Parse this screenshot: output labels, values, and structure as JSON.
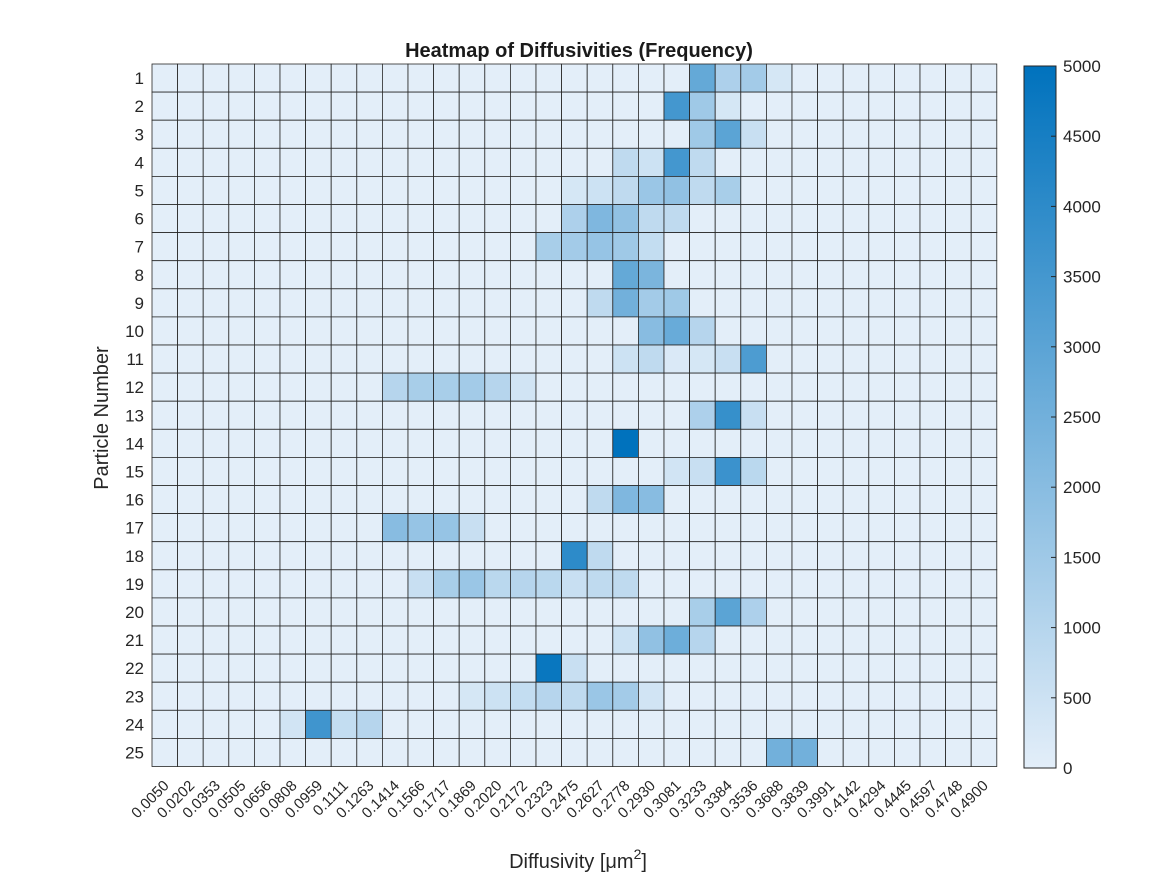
{
  "chart_data": {
    "type": "heatmap",
    "title": "Heatmap of Diffusivities (Frequency)",
    "xlabel": "Diffusivity [μm",
    "xlabel_sup": "2",
    "xlabel_end": "]",
    "ylabel": "Particle Number",
    "x_categories": [
      "0.0050",
      "0.0202",
      "0.0353",
      "0.0505",
      "0.0656",
      "0.0808",
      "0.0959",
      "0.1111",
      "0.1263",
      "0.1414",
      "0.1566",
      "0.1717",
      "0.1869",
      "0.2020",
      "0.2172",
      "0.2323",
      "0.2475",
      "0.2627",
      "0.2778",
      "0.2930",
      "0.3081",
      "0.3233",
      "0.3384",
      "0.3536",
      "0.3688",
      "0.3839",
      "0.3991",
      "0.4142",
      "0.4294",
      "0.4445",
      "0.4597",
      "0.4748",
      "0.4900"
    ],
    "y_categories": [
      "1",
      "2",
      "3",
      "4",
      "5",
      "6",
      "7",
      "8",
      "9",
      "10",
      "11",
      "12",
      "13",
      "14",
      "15",
      "16",
      "17",
      "18",
      "19",
      "20",
      "21",
      "22",
      "23",
      "24",
      "25"
    ],
    "colorbar": {
      "min": 0,
      "max": 5000,
      "ticks": [
        "0",
        "500",
        "1000",
        "1500",
        "2000",
        "2500",
        "3000",
        "3500",
        "4000",
        "4500",
        "5000"
      ],
      "color_low": "#e3eef9",
      "color_high": "#0072bd"
    },
    "values": [
      [
        0,
        0,
        0,
        0,
        0,
        0,
        0,
        0,
        0,
        0,
        0,
        0,
        0,
        0,
        0,
        0,
        0,
        0,
        0,
        0,
        0,
        2800,
        1200,
        1400,
        300,
        0,
        0,
        0,
        0,
        0,
        0,
        0,
        0
      ],
      [
        0,
        0,
        0,
        0,
        0,
        0,
        0,
        0,
        0,
        0,
        0,
        0,
        0,
        0,
        0,
        0,
        0,
        0,
        0,
        0,
        3500,
        1500,
        300,
        0,
        0,
        0,
        0,
        0,
        0,
        0,
        0,
        0,
        0
      ],
      [
        0,
        0,
        0,
        0,
        0,
        0,
        0,
        0,
        0,
        0,
        0,
        0,
        0,
        0,
        0,
        0,
        0,
        0,
        0,
        0,
        0,
        1500,
        3000,
        600,
        0,
        0,
        0,
        0,
        0,
        0,
        0,
        0,
        0
      ],
      [
        0,
        0,
        0,
        0,
        0,
        0,
        0,
        0,
        0,
        0,
        0,
        0,
        0,
        0,
        0,
        0,
        0,
        0,
        800,
        500,
        3500,
        800,
        0,
        0,
        0,
        0,
        0,
        0,
        0,
        0,
        0,
        0,
        0
      ],
      [
        0,
        0,
        0,
        0,
        0,
        0,
        0,
        0,
        0,
        0,
        0,
        0,
        0,
        0,
        0,
        0,
        300,
        500,
        800,
        1600,
        1800,
        800,
        1300,
        0,
        0,
        0,
        0,
        0,
        0,
        0,
        0,
        0,
        0
      ],
      [
        0,
        0,
        0,
        0,
        0,
        0,
        0,
        0,
        0,
        0,
        0,
        0,
        0,
        0,
        0,
        0,
        1200,
        2200,
        1800,
        800,
        800,
        0,
        0,
        0,
        0,
        0,
        0,
        0,
        0,
        0,
        0,
        0,
        0
      ],
      [
        0,
        0,
        0,
        0,
        0,
        0,
        0,
        0,
        0,
        0,
        0,
        0,
        0,
        0,
        0,
        1300,
        1400,
        1700,
        1500,
        700,
        0,
        0,
        0,
        0,
        0,
        0,
        0,
        0,
        0,
        0,
        0,
        0,
        0
      ],
      [
        0,
        0,
        0,
        0,
        0,
        0,
        0,
        0,
        0,
        0,
        0,
        0,
        0,
        0,
        0,
        0,
        0,
        0,
        2800,
        2300,
        0,
        0,
        0,
        0,
        0,
        0,
        0,
        0,
        0,
        0,
        0,
        0,
        0
      ],
      [
        0,
        0,
        0,
        0,
        0,
        0,
        0,
        0,
        0,
        0,
        0,
        0,
        0,
        0,
        0,
        0,
        0,
        800,
        2500,
        1400,
        1500,
        0,
        0,
        0,
        0,
        0,
        0,
        0,
        0,
        0,
        0,
        0,
        0
      ],
      [
        0,
        0,
        0,
        0,
        0,
        0,
        0,
        0,
        0,
        0,
        0,
        0,
        0,
        0,
        0,
        0,
        0,
        0,
        0,
        2000,
        2700,
        1000,
        0,
        0,
        0,
        0,
        0,
        0,
        0,
        0,
        0,
        0,
        0
      ],
      [
        0,
        0,
        0,
        0,
        0,
        0,
        0,
        0,
        0,
        0,
        0,
        0,
        0,
        0,
        0,
        0,
        0,
        0,
        500,
        800,
        200,
        300,
        600,
        3300,
        0,
        0,
        0,
        0,
        0,
        0,
        0,
        0,
        0
      ],
      [
        0,
        0,
        0,
        0,
        0,
        0,
        0,
        0,
        0,
        1000,
        1300,
        1300,
        1400,
        1000,
        400,
        0,
        0,
        0,
        0,
        0,
        0,
        0,
        0,
        0,
        0,
        0,
        0,
        0,
        0,
        0,
        0,
        0,
        0
      ],
      [
        0,
        0,
        0,
        0,
        0,
        0,
        0,
        0,
        0,
        0,
        0,
        0,
        0,
        0,
        0,
        0,
        0,
        0,
        0,
        0,
        0,
        1200,
        3800,
        600,
        0,
        0,
        0,
        0,
        0,
        0,
        0,
        0,
        0
      ],
      [
        0,
        0,
        0,
        0,
        0,
        0,
        0,
        0,
        0,
        0,
        0,
        0,
        0,
        0,
        0,
        0,
        0,
        0,
        5000,
        0,
        0,
        0,
        0,
        0,
        0,
        0,
        0,
        0,
        0,
        0,
        0,
        0,
        0
      ],
      [
        0,
        0,
        0,
        0,
        0,
        0,
        0,
        0,
        0,
        0,
        0,
        0,
        0,
        0,
        0,
        0,
        0,
        0,
        0,
        0,
        400,
        600,
        3700,
        900,
        0,
        0,
        0,
        0,
        0,
        0,
        0,
        0,
        0
      ],
      [
        0,
        0,
        0,
        0,
        0,
        0,
        0,
        0,
        0,
        0,
        0,
        0,
        0,
        0,
        0,
        0,
        0,
        800,
        2200,
        2000,
        0,
        0,
        0,
        0,
        0,
        0,
        0,
        0,
        0,
        0,
        0,
        0,
        0
      ],
      [
        0,
        0,
        0,
        0,
        0,
        0,
        0,
        0,
        0,
        2000,
        1700,
        1700,
        600,
        0,
        0,
        0,
        0,
        0,
        0,
        0,
        0,
        0,
        0,
        0,
        0,
        0,
        0,
        0,
        0,
        0,
        0,
        0,
        0
      ],
      [
        0,
        0,
        0,
        0,
        0,
        0,
        0,
        0,
        0,
        0,
        0,
        0,
        0,
        0,
        0,
        0,
        4000,
        800,
        0,
        0,
        0,
        0,
        0,
        0,
        0,
        0,
        0,
        0,
        0,
        0,
        0,
        0,
        0
      ],
      [
        0,
        0,
        0,
        0,
        0,
        0,
        0,
        0,
        0,
        0,
        600,
        1300,
        1600,
        900,
        1000,
        900,
        600,
        800,
        800,
        0,
        0,
        0,
        0,
        0,
        0,
        0,
        0,
        0,
        0,
        0,
        0,
        0,
        0
      ],
      [
        0,
        0,
        0,
        0,
        0,
        0,
        0,
        0,
        0,
        0,
        0,
        0,
        0,
        0,
        0,
        0,
        0,
        0,
        0,
        0,
        0,
        1300,
        3000,
        1200,
        0,
        0,
        0,
        0,
        0,
        0,
        0,
        0,
        0
      ],
      [
        0,
        0,
        0,
        0,
        0,
        0,
        0,
        0,
        0,
        0,
        0,
        0,
        0,
        0,
        0,
        0,
        0,
        0,
        500,
        1800,
        2600,
        1000,
        0,
        0,
        0,
        0,
        0,
        0,
        0,
        0,
        0,
        0,
        0
      ],
      [
        0,
        0,
        0,
        0,
        0,
        0,
        0,
        0,
        0,
        0,
        0,
        0,
        0,
        0,
        0,
        4800,
        600,
        0,
        0,
        0,
        0,
        0,
        0,
        0,
        0,
        0,
        0,
        0,
        0,
        0,
        0,
        0,
        0
      ],
      [
        0,
        0,
        0,
        0,
        0,
        0,
        0,
        0,
        0,
        0,
        0,
        0,
        300,
        500,
        700,
        1000,
        800,
        1600,
        1400,
        400,
        0,
        0,
        0,
        0,
        0,
        0,
        0,
        0,
        0,
        0,
        0,
        0,
        0
      ],
      [
        0,
        0,
        0,
        0,
        0,
        400,
        3600,
        700,
        1000,
        0,
        0,
        0,
        0,
        0,
        0,
        0,
        0,
        0,
        0,
        0,
        0,
        0,
        0,
        0,
        0,
        0,
        0,
        0,
        0,
        0,
        0,
        0,
        0
      ],
      [
        0,
        0,
        0,
        0,
        0,
        0,
        0,
        0,
        0,
        0,
        0,
        0,
        0,
        0,
        0,
        0,
        0,
        0,
        0,
        0,
        0,
        0,
        0,
        0,
        2500,
        2500,
        0,
        0,
        0,
        0,
        0,
        0,
        0
      ]
    ]
  }
}
